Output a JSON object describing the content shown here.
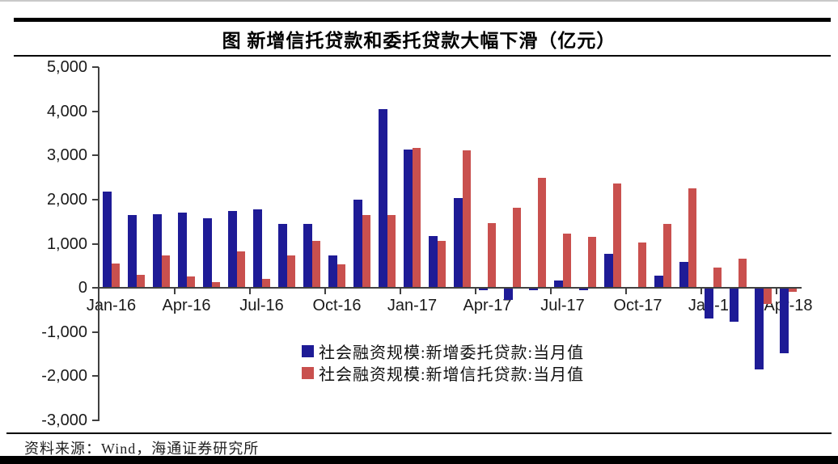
{
  "header": {
    "title": "图  新增信托贷款和委托贷款大幅下滑（亿元）"
  },
  "footer": {
    "source": "资料来源：Wind，海通证券研究所"
  },
  "chart_data": {
    "type": "bar",
    "title": "图 新增信托贷款和委托贷款大幅下滑（亿元）",
    "unit": "亿元",
    "grid": false,
    "legend_position": "bottom-center",
    "ylim": [
      -3000,
      5000
    ],
    "y_tick_step": 1000,
    "y_tick_labels": [
      "5,000",
      "4,000",
      "3,000",
      "2,000",
      "1,000",
      "0",
      "-1,000",
      "-2,000",
      "-3,000"
    ],
    "x_tick_labels": [
      "Jan-16",
      "Apr-16",
      "Jul-16",
      "Oct-16",
      "Jan-17",
      "Apr-17",
      "Jul-17",
      "Oct-17",
      "Jan-18",
      "Apr-18"
    ],
    "categories": [
      "Jan-16",
      "Feb-16",
      "Mar-16",
      "Apr-16",
      "May-16",
      "Jun-16",
      "Jul-16",
      "Aug-16",
      "Sep-16",
      "Oct-16",
      "Nov-16",
      "Dec-16",
      "Jan-17",
      "Feb-17",
      "Mar-17",
      "Apr-17",
      "May-17",
      "Jun-17",
      "Jul-17",
      "Aug-17",
      "Sep-17",
      "Oct-17",
      "Nov-17",
      "Dec-17",
      "Jan-18",
      "Feb-18",
      "Mar-18",
      "Apr-18"
    ],
    "series": [
      {
        "name": "社会融资规模:新增委托贷款:当月值",
        "color": "#1E1B96",
        "values": [
          2175,
          1650,
          1660,
          1695,
          1570,
          1730,
          1775,
          1440,
          1450,
          730,
          2000,
          4050,
          3130,
          1170,
          2040,
          -50,
          -280,
          -50,
          160,
          -50,
          760,
          25,
          270,
          580,
          -700,
          -760,
          -1850,
          -1480
        ]
      },
      {
        "name": "社会融资规模:新增信托贷款:当月值",
        "color": "#C9504E",
        "values": [
          550,
          290,
          730,
          260,
          120,
          820,
          210,
          730,
          1065,
          530,
          1640,
          1640,
          3175,
          1060,
          3110,
          1470,
          1810,
          2490,
          1230,
          1150,
          2370,
          1020,
          1440,
          2250,
          455,
          660,
          -360,
          -100
        ]
      }
    ]
  }
}
